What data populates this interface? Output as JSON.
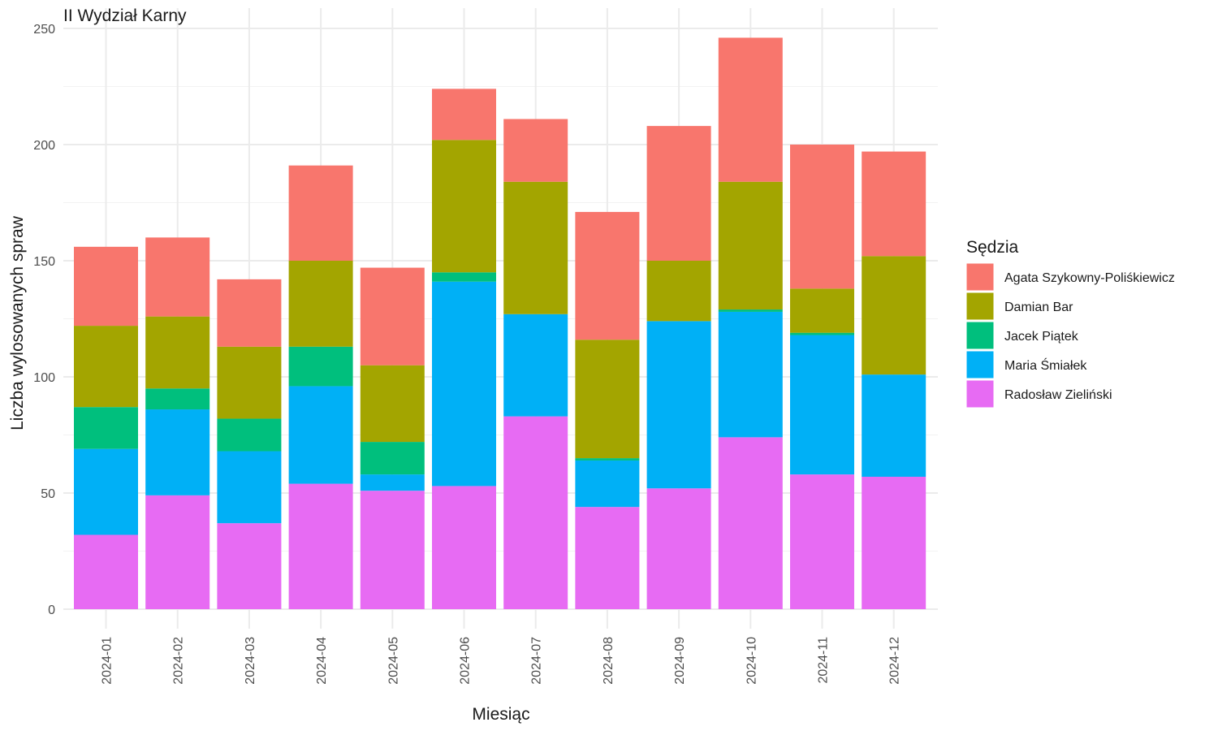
{
  "chart_data": {
    "type": "bar",
    "stacked": true,
    "title": "II Wydział Karny",
    "xlabel": "Miesiąc",
    "ylabel": "Liczba wylosowanych spraw",
    "ylim": [
      0,
      250
    ],
    "yticks": [
      0,
      50,
      100,
      150,
      200,
      250
    ],
    "grid": true,
    "legend_title": "Sędzia",
    "legend_position": "right",
    "categories": [
      "2024-01",
      "2024-02",
      "2024-03",
      "2024-04",
      "2024-05",
      "2024-06",
      "2024-07",
      "2024-08",
      "2024-09",
      "2024-10",
      "2024-11",
      "2024-12"
    ],
    "series": [
      {
        "name": "Agata Szykowny-Poliśkiewicz",
        "color": "#F8766D",
        "values": [
          34,
          34,
          29,
          41,
          42,
          22,
          27,
          55,
          58,
          62,
          62,
          45
        ]
      },
      {
        "name": "Damian Bar",
        "color": "#A3A500",
        "values": [
          35,
          31,
          31,
          37,
          33,
          57,
          57,
          51,
          26,
          55,
          19,
          51
        ]
      },
      {
        "name": "Jacek Piątek",
        "color": "#00BF7D",
        "values": [
          18,
          9,
          14,
          17,
          14,
          4,
          0,
          1,
          0,
          1,
          1,
          0
        ]
      },
      {
        "name": "Maria Śmiałek",
        "color": "#00B0F6",
        "values": [
          37,
          37,
          31,
          42,
          7,
          88,
          44,
          20,
          72,
          54,
          60,
          44
        ]
      },
      {
        "name": "Radosław Zieliński",
        "color": "#E76BF3",
        "values": [
          32,
          49,
          37,
          54,
          51,
          53,
          83,
          44,
          52,
          74,
          58,
          57
        ]
      }
    ]
  }
}
